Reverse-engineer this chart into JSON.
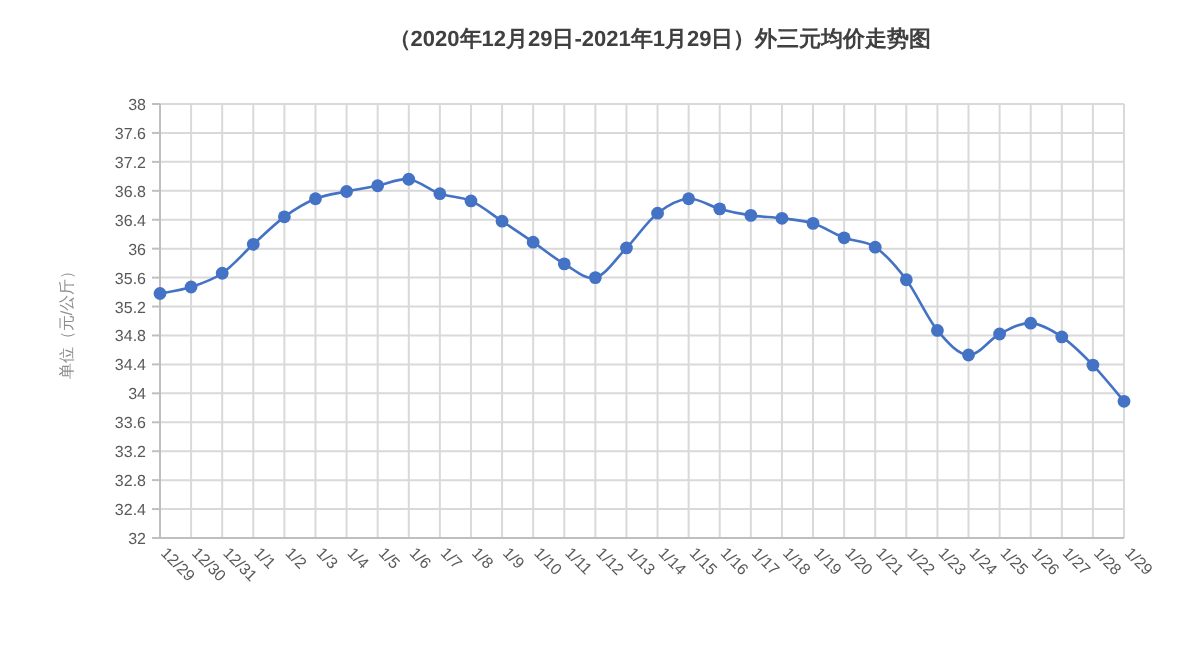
{
  "chart_data": {
    "type": "line",
    "title": "（2020年12月29日-2021年1月29日）外三元均价走势图",
    "ylabel": "单位（元/公斤）",
    "categories": [
      "12/29",
      "12/30",
      "12/31",
      "1/1",
      "1/2",
      "1/3",
      "1/4",
      "1/5",
      "1/6",
      "1/7",
      "1/8",
      "1/9",
      "1/10",
      "1/11",
      "1/12",
      "1/13",
      "1/14",
      "1/15",
      "1/16",
      "1/17",
      "1/18",
      "1/19",
      "1/20",
      "1/21",
      "1/22",
      "1/23",
      "1/24",
      "1/25",
      "1/26",
      "1/27",
      "1/28",
      "1/29"
    ],
    "series": [
      {
        "color": "#4472c4",
        "values": [
          35.38,
          35.47,
          35.66,
          36.06,
          36.44,
          36.69,
          36.79,
          36.87,
          36.96,
          36.76,
          36.66,
          36.38,
          36.09,
          35.79,
          35.6,
          36.01,
          36.49,
          36.69,
          36.55,
          36.46,
          36.42,
          36.35,
          36.15,
          36.02,
          35.57,
          34.87,
          34.53,
          34.82,
          34.97,
          34.78,
          34.39,
          33.89
        ]
      }
    ],
    "ylim": [
      32,
      38
    ],
    "yticks": [
      32,
      32.4,
      32.8,
      33.2,
      33.6,
      34,
      34.4,
      34.8,
      35.2,
      35.6,
      36,
      36.4,
      36.8,
      37.2,
      37.6,
      38
    ],
    "grid": true,
    "marker": "circle",
    "line_style": "solid"
  }
}
